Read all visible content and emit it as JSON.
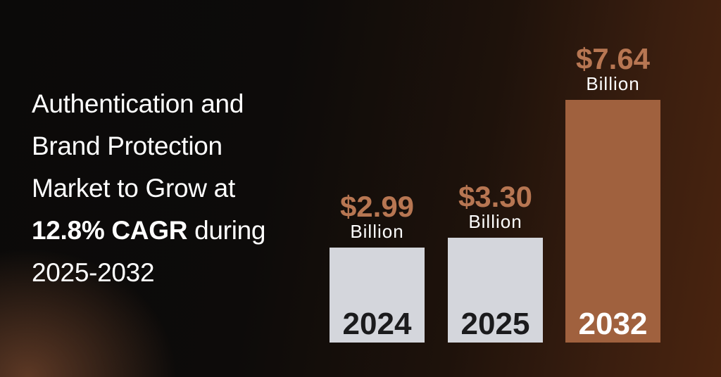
{
  "headline": {
    "line1": "Authentication and",
    "line2": "Brand Protection",
    "line3": "Market to Grow at",
    "line4_strong": "12.8% CAGR",
    "line4_rest": " during",
    "line5": "2025-2032"
  },
  "colors": {
    "accent": "#a0613e",
    "light_bar": "#d4d6dc",
    "year_dark": "#1b1b1d",
    "value_text": "#b77652",
    "unit_text": "#ffffff"
  },
  "chart_data": {
    "type": "bar",
    "categories": [
      "2024",
      "2025",
      "2032"
    ],
    "values": [
      2.99,
      3.3,
      7.64
    ],
    "value_labels": [
      "$2.99",
      "$3.30",
      "$7.64"
    ],
    "unit_label": "Billion",
    "highlight_index": 2,
    "title": "",
    "xlabel": "",
    "ylabel": ""
  }
}
